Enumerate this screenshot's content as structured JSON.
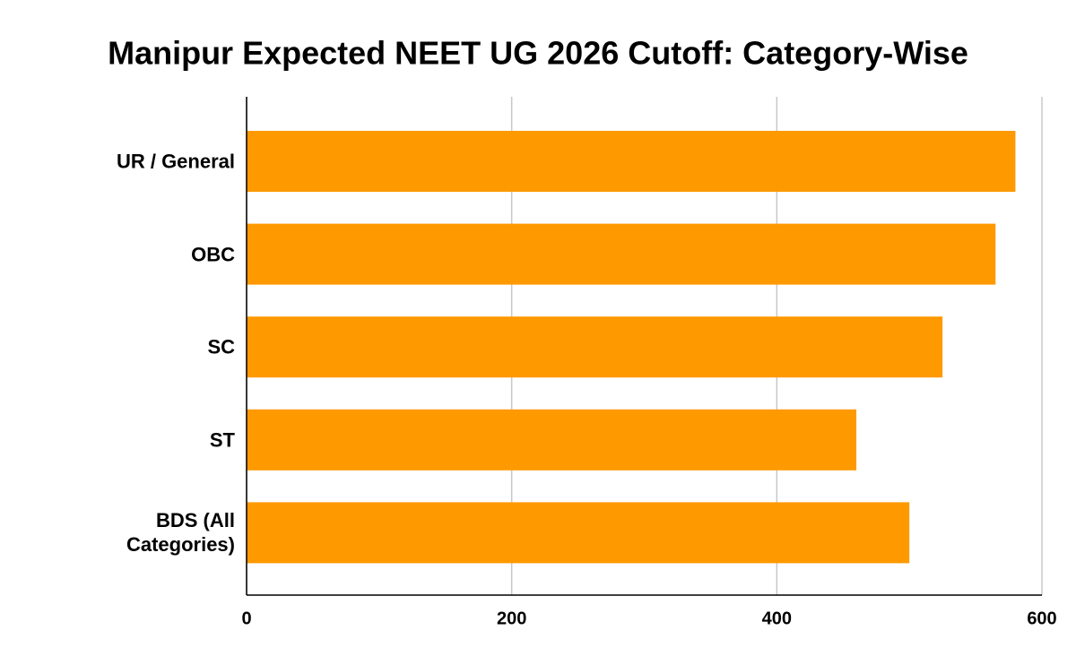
{
  "chart_data": {
    "type": "bar",
    "orientation": "horizontal",
    "title": "Manipur Expected NEET UG 2026 Cutoff: Category-Wise",
    "categories": [
      "UR / General",
      "OBC",
      "SC",
      "ST",
      "BDS (All Categories)"
    ],
    "values": [
      580,
      565,
      525,
      460,
      500
    ],
    "color": "#ff9900",
    "xlim": [
      0,
      600
    ],
    "xticks": [
      0,
      200,
      400,
      600
    ],
    "grid": true
  }
}
